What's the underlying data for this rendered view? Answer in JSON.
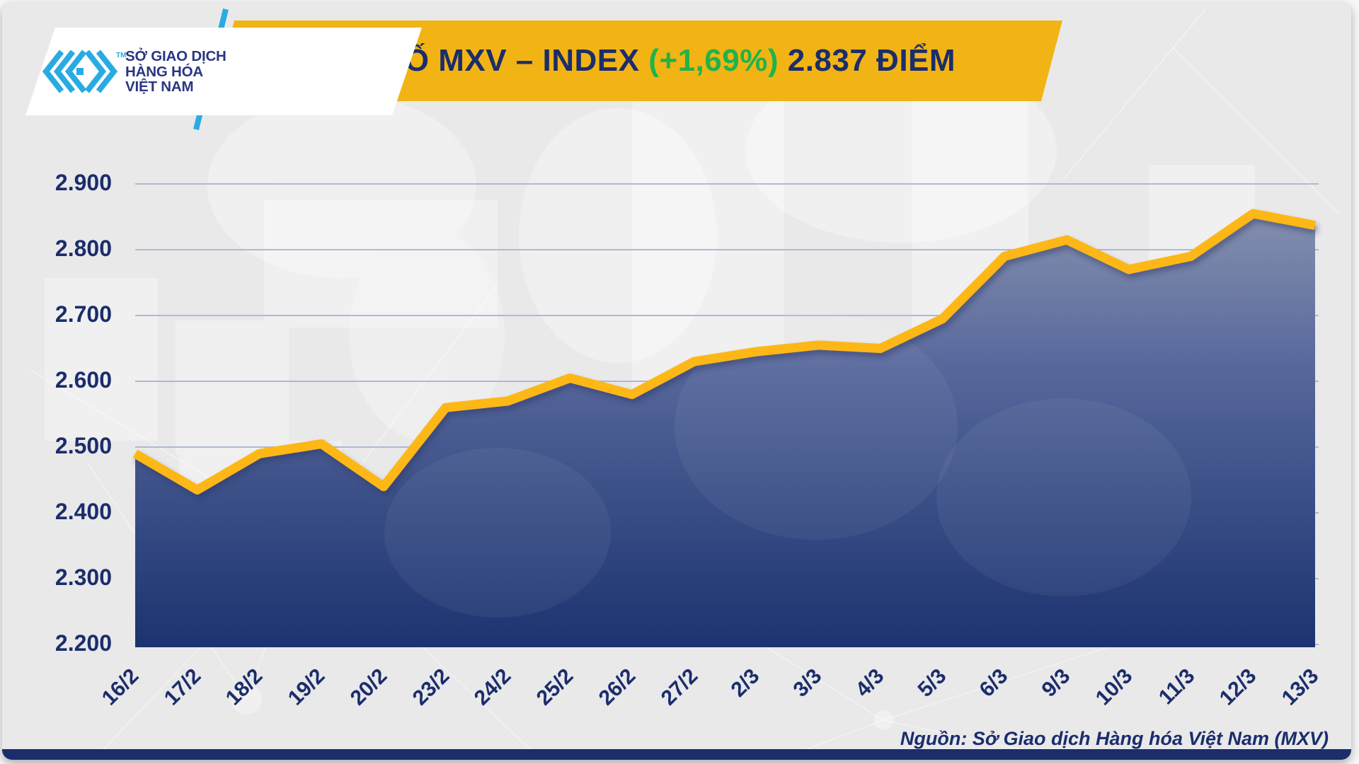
{
  "header": {
    "logo": {
      "text_lines": [
        "SỞ GIAO DỊCH",
        "HÀNG HÓA",
        "VIỆT NAM"
      ],
      "trademark": "TM"
    },
    "title_main": "CHỈ SỐ MXV – INDEX",
    "title_change": "(+1,69%)",
    "title_value": "2.837 ĐIỂM"
  },
  "chart_data": {
    "type": "area",
    "title": "CHỈ SỐ MXV – INDEX (+1,69%) 2.837 ĐIỂM",
    "categories": [
      "16/2",
      "17/2",
      "18/2",
      "19/2",
      "20/2",
      "23/2",
      "24/2",
      "25/2",
      "26/2",
      "27/2",
      "2/3",
      "3/3",
      "4/3",
      "5/3",
      "6/3",
      "9/3",
      "10/3",
      "11/3",
      "12/3",
      "13/3"
    ],
    "values": [
      2490,
      2435,
      2490,
      2505,
      2440,
      2560,
      2570,
      2605,
      2580,
      2630,
      2645,
      2655,
      2650,
      2695,
      2790,
      2815,
      2770,
      2790,
      2855,
      2837
    ],
    "last_value_label": "2.837",
    "change_percent_label": "+1,69%",
    "ylim": [
      2200,
      2900
    ],
    "ytick_step": 100,
    "y_tick_labels": [
      "2.900",
      "2.800",
      "2.700",
      "2.600",
      "2.500",
      "2.400",
      "2.300",
      "2.200"
    ],
    "x_label_rotation": -45,
    "grid": "horizontal",
    "legend": "none"
  },
  "footer": {
    "source": "Nguồn: Sở Giao dịch Hàng hóa Việt Nam (MXV)"
  },
  "colors": {
    "banner_yellow": "#F2B414",
    "line_yellow": "#FDB713",
    "navy": "#1B2D6B",
    "green": "#21B24B",
    "cyan": "#29ABE2",
    "logo_navy": "#2A3582",
    "fill_top": "#8D97B2",
    "fill_mid": "#56679B",
    "fill_bottom": "#1B3370",
    "grid": "#AEB9D4",
    "card_bg": "#E9E9EA"
  }
}
